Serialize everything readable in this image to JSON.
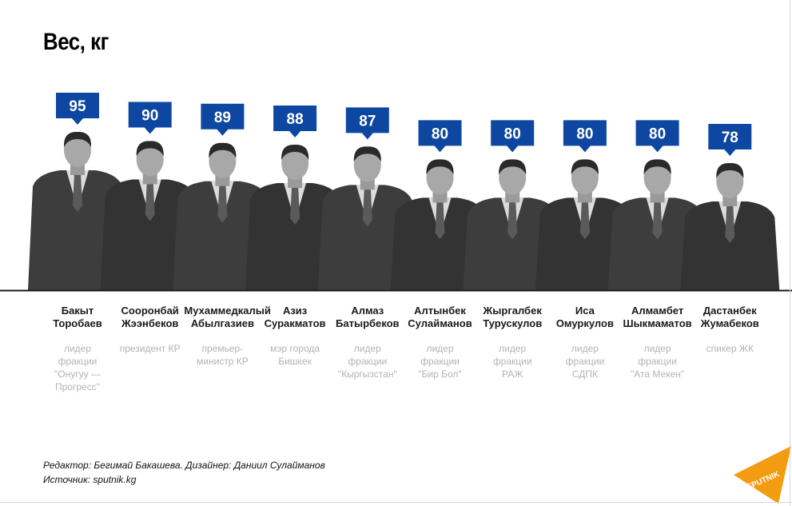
{
  "title": "Вес, кг",
  "colors": {
    "accent": "#0d47a1",
    "label_text": "#ffffff",
    "silhouette": "#3a3a3a",
    "baseline": "#1a1a1a",
    "role_text": "#b3b3b3"
  },
  "chart_data": {
    "type": "bar",
    "title": "Вес, кг",
    "xlabel": "",
    "ylabel": "",
    "categories": [
      "Бакыт\nТоробаев",
      "Сооронбай\nЖээнбеков",
      "Мухаммедкалый\nАбылгазиев",
      "Азиз\nСуракматов",
      "Алмаз\nБатырбеков",
      "Алтынбек\nСулайманов",
      "Жыргалбек\nТурускулов",
      "Иса\nОмуркулов",
      "Алмамбет\nШыкмаматов",
      "Дастанбек\nЖумабеков"
    ],
    "values": [
      95,
      90,
      89,
      88,
      87,
      80,
      80,
      80,
      80,
      78
    ],
    "roles": [
      "лидер\nфракции\n\"Онугуу —\nПрогресс\"",
      "президент КР",
      "премьер-\nминистр КР",
      "мэр города\nБишкек",
      "лидер\nфракции\n\"Кыргызстан\"",
      "лидер\nфракции\n\"Бир Бол\"",
      "лидер\nфракции\nРАЖ",
      "лидер\nфракции\nСДПК",
      "лидер\nфракции\n\"Ата Мекен\"",
      "спикер ЖК"
    ]
  },
  "credits": {
    "line1": "Редактор: Бегимай Бакашева. Дизайнер: Даниил Сулайманов",
    "line2": "Источник: sputnik.kg"
  },
  "logo": {
    "text": "SPUTNIK",
    "icon": "sputnik-logo-icon"
  }
}
